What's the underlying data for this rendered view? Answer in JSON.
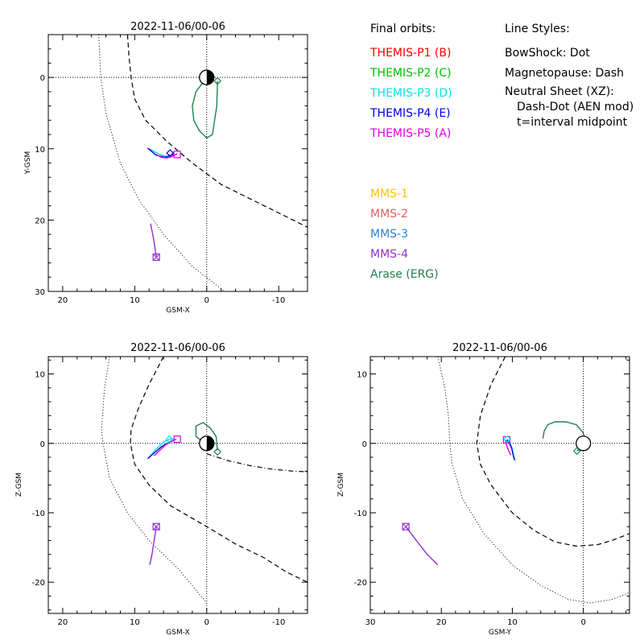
{
  "legend": {
    "orbits_header": "Final orbits:",
    "orbits": [
      {
        "label": "THEMIS-P1 (B)",
        "color": "#ff0000"
      },
      {
        "label": "THEMIS-P2 (C)",
        "color": "#00c000"
      },
      {
        "label": "THEMIS-P3 (D)",
        "color": "#00e5e5"
      },
      {
        "label": "THEMIS-P4 (E)",
        "color": "#0000e0"
      },
      {
        "label": "THEMIS-P5 (A)",
        "color": "#e000e0"
      }
    ],
    "styles_header": "Line Styles:",
    "styles": [
      "BowShock: Dot",
      "Magnetopause: Dash",
      "Neutral Sheet (XZ):",
      "Dash-Dot (AEN mod)",
      "t=interval midpoint"
    ],
    "missions": [
      {
        "label": "MMS-1",
        "color": "#ffc000"
      },
      {
        "label": "MMS-2",
        "color": "#e06060"
      },
      {
        "label": "MMS-3",
        "color": "#3080d0"
      },
      {
        "label": "MMS-4",
        "color": "#9030d0"
      },
      {
        "label": "Arase (ERG)",
        "color": "#208050"
      }
    ]
  },
  "colors": {
    "axes": "#000000",
    "arase": "#208050",
    "themis_d": "#00e5e5",
    "themis_e": "#0000e0",
    "themis_a": "#e000e0",
    "mms4": "#9030d0"
  },
  "chart_data": [
    {
      "type": "line",
      "title": "2022-11-06/00-06",
      "xlabel": "GSM-X",
      "ylabel": "Y-GSM",
      "xlim": [
        22,
        -14
      ],
      "ylim": [
        30,
        -6
      ],
      "y_inverted": true,
      "xticks": [
        20,
        10,
        0,
        -10
      ],
      "yticks": [
        0,
        10,
        20,
        30
      ],
      "grid": "dotted zero lines",
      "series": [
        {
          "key": "bowshock",
          "style": "dot",
          "x": [
            15,
            14.7,
            14,
            12,
            9.5,
            6,
            2,
            -2.5
          ],
          "y": [
            -6,
            0,
            5,
            12,
            17,
            22,
            26.5,
            30
          ]
        },
        {
          "key": "magnetopause",
          "style": "dash",
          "x": [
            11,
            10.8,
            10.5,
            10,
            8.5,
            5.5,
            2,
            -2,
            -6,
            -10,
            -14
          ],
          "y": [
            -6,
            -3,
            0,
            3,
            6,
            9,
            12,
            15,
            17,
            19,
            21
          ]
        },
        {
          "key": "arase",
          "color_key": "arase",
          "x": [
            0,
            1.5,
            2,
            1.8,
            1,
            0,
            -0.8,
            -1.4,
            -1.5
          ],
          "y": [
            0,
            2,
            4,
            6,
            7.5,
            8.5,
            8,
            4,
            0.5
          ]
        },
        {
          "key": "themis_d",
          "color_key": "themis_d",
          "x": [
            4.5,
            5,
            5.5,
            6.5,
            8
          ],
          "y": [
            10.6,
            11,
            11.1,
            10.8,
            10
          ]
        },
        {
          "key": "themis_e",
          "color_key": "themis_e",
          "x": [
            4.6,
            5.2,
            5.8,
            7,
            8.2
          ],
          "y": [
            10.8,
            11,
            11.2,
            10.9,
            9.9
          ]
        },
        {
          "key": "themis_a",
          "color_key": "themis_a",
          "x": [
            4.1,
            4.8,
            5.5,
            6.3,
            7
          ],
          "y": [
            10.7,
            11.1,
            11.3,
            11.2,
            10.8
          ]
        },
        {
          "key": "mms",
          "color_key": "mms4",
          "x": [
            7,
            7.4,
            7.8
          ],
          "y": [
            25.2,
            22.5,
            20.5
          ]
        }
      ],
      "markers": [
        {
          "shape": "diamond",
          "color_key": "arase",
          "x": -1.5,
          "y": 0.5
        },
        {
          "shape": "square",
          "color_key": "themis_a",
          "x": 4.1,
          "y": 10.8
        },
        {
          "shape": "diamond",
          "color_key": "themis_e",
          "x": 5.1,
          "y": 10.6
        },
        {
          "shape": "boxcross",
          "color_key": "mms4",
          "x": 7,
          "y": 25.2
        }
      ]
    },
    {
      "type": "line",
      "title": "2022-11-06/00-06",
      "xlabel": "GSM-X",
      "ylabel": "Z-GSM",
      "xlim": [
        22,
        -14
      ],
      "ylim": [
        -24.5,
        12.5
      ],
      "xticks": [
        20,
        10,
        0,
        -10
      ],
      "yticks": [
        10,
        0,
        -10,
        -20
      ],
      "grid": "dotted zero lines",
      "series": [
        {
          "key": "bowshock",
          "style": "dot",
          "x": [
            13.5,
            14.2,
            14.6,
            14.4,
            13.5,
            11,
            8,
            4,
            0
          ],
          "y": [
            12.5,
            8,
            2,
            0,
            -5,
            -10,
            -14,
            -18,
            -23
          ]
        },
        {
          "key": "magnetopause",
          "style": "dash",
          "x": [
            6,
            8,
            9.5,
            10.5,
            10.6,
            10,
            8,
            5,
            0,
            -4,
            -8,
            -11,
            -14
          ],
          "y": [
            12.5,
            8.5,
            5,
            2,
            0,
            -3,
            -6,
            -9,
            -12,
            -14.5,
            -16.5,
            -18.5,
            -20
          ]
        },
        {
          "key": "neutral_sheet",
          "style": "dashdot",
          "x": [
            0,
            -3,
            -6,
            -9,
            -12,
            -14
          ],
          "y": [
            -1.5,
            -2.5,
            -3.2,
            -3.7,
            -4,
            -4.1
          ]
        },
        {
          "key": "arase",
          "color_key": "arase",
          "x": [
            0,
            1.5,
            1.5,
            0.5,
            -0.5,
            -1.3,
            -1.5
          ],
          "y": [
            -0.2,
            1,
            2.5,
            3,
            2.2,
            1,
            -1
          ]
        },
        {
          "key": "themis_d",
          "color_key": "themis_d",
          "x": [
            4.3,
            5,
            6,
            7,
            8
          ],
          "y": [
            0.5,
            0.7,
            0.2,
            -0.8,
            -2
          ]
        },
        {
          "key": "themis_e",
          "color_key": "themis_e",
          "x": [
            4.8,
            5.5,
            6.3,
            7.2,
            8.2
          ],
          "y": [
            0.3,
            0,
            -0.5,
            -1.3,
            -2.2
          ]
        },
        {
          "key": "themis_a",
          "color_key": "themis_a",
          "x": [
            4.2,
            5,
            5.8,
            6.5,
            7.3
          ],
          "y": [
            0.6,
            0.3,
            -0.3,
            -1,
            -1.8
          ]
        },
        {
          "key": "mms",
          "color_key": "mms4",
          "x": [
            7,
            7.3,
            7.6,
            7.9
          ],
          "y": [
            -12,
            -14,
            -16,
            -17.5
          ]
        }
      ],
      "markers": [
        {
          "shape": "diamond",
          "color_key": "arase",
          "x": -1.5,
          "y": -1.2
        },
        {
          "shape": "square",
          "color_key": "themis_a",
          "x": 4.1,
          "y": 0.6
        },
        {
          "shape": "diamond",
          "color_key": "themis_d",
          "x": 5.2,
          "y": 0.6
        },
        {
          "shape": "boxcross",
          "color_key": "mms4",
          "x": 7,
          "y": -12
        }
      ]
    },
    {
      "type": "line",
      "title": "2022-11-06/00-06",
      "xlabel": "GSM-Y",
      "ylabel": "Z-GSM",
      "xlim": [
        30,
        -6.5
      ],
      "ylim": [
        -24.5,
        12.5
      ],
      "xticks": [
        30,
        20,
        10,
        0
      ],
      "yticks": [
        10,
        0,
        -10,
        -20
      ],
      "grid": "dotted zero lines",
      "series": [
        {
          "key": "bowshock",
          "style": "dot",
          "x": [
            20.5,
            19.5,
            19,
            18.8,
            18.5,
            17,
            14,
            10,
            6,
            2,
            -1,
            -4,
            -6.5
          ],
          "y": [
            12.5,
            8,
            4,
            0,
            -3,
            -8,
            -13,
            -17.5,
            -20.5,
            -22.5,
            -23,
            -22.5,
            -21.5
          ]
        },
        {
          "key": "magnetopause",
          "style": "dash",
          "x": [
            11,
            13,
            14.5,
            15,
            14.5,
            13,
            10,
            7,
            4,
            1,
            -2,
            -4,
            -6.5
          ],
          "y": [
            12.5,
            8.5,
            4,
            0,
            -3,
            -6,
            -10,
            -12.5,
            -14.2,
            -14.8,
            -14.6,
            -14,
            -13
          ]
        },
        {
          "key": "arase",
          "color_key": "arase",
          "x": [
            5.7,
            5.5,
            5,
            4,
            2.5,
            1,
            0,
            -0.3,
            0.5,
            0.9
          ],
          "y": [
            0.7,
            1.8,
            2.7,
            3.1,
            3.1,
            2.7,
            1.5,
            0,
            -0.8,
            -1.1
          ]
        },
        {
          "key": "themis_d",
          "color_key": "themis_d",
          "x": [
            10.7,
            10.3,
            10,
            9.8,
            9.6
          ],
          "y": [
            0.6,
            0.1,
            -0.8,
            -1.8,
            -2.5
          ]
        },
        {
          "key": "themis_e",
          "color_key": "themis_e",
          "x": [
            10.8,
            10.4,
            10.1,
            9.9,
            9.7
          ],
          "y": [
            0.5,
            0,
            -0.7,
            -1.6,
            -2.4
          ]
        },
        {
          "key": "themis_a",
          "color_key": "themis_a",
          "x": [
            11,
            10.8,
            10.5,
            10.2
          ],
          "y": [
            0.5,
            -0.3,
            -1.1,
            -1.7
          ]
        },
        {
          "key": "mms",
          "color_key": "mms4",
          "x": [
            25,
            23.5,
            22,
            20.5
          ],
          "y": [
            -12,
            -14,
            -16,
            -17.5
          ]
        }
      ],
      "markers": [
        {
          "shape": "diamond",
          "color_key": "arase",
          "x": 0.9,
          "y": -1.1
        },
        {
          "shape": "square",
          "color_key": "themis_a",
          "x": 10.8,
          "y": 0.5
        },
        {
          "shape": "diamond",
          "color_key": "themis_d",
          "x": 10.7,
          "y": 0.6
        },
        {
          "shape": "boxcross",
          "color_key": "mms4",
          "x": 25,
          "y": -12
        }
      ]
    }
  ]
}
